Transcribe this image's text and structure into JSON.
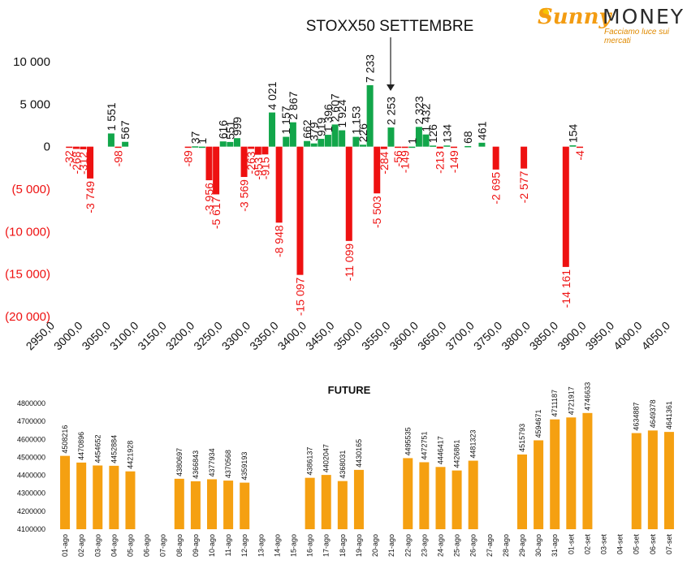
{
  "logo": {
    "word1": "Sunny",
    "word2": "MONEY",
    "tagline": "Facciamo luce sui mercati"
  },
  "colors": {
    "positive": "#12a64a",
    "negative": "#ee1111",
    "future": "#f5a011"
  },
  "chart_data": [
    {
      "type": "bar",
      "title": "STOXX50 SETTEMBRE",
      "xlim": [
        2950,
        4050
      ],
      "x_ticks": [
        "2950,0",
        "3000,0",
        "3050,0",
        "3100,0",
        "3150,0",
        "3200,0",
        "3250,0",
        "3300,0",
        "3350,0",
        "3400,0",
        "3450,0",
        "3500,0",
        "3550,0",
        "3600,0",
        "3650,0",
        "3700,0",
        "3750,0",
        "3800,0",
        "3850,0",
        "3900,0",
        "3950,0",
        "4000,0",
        "4050,0"
      ],
      "y_ticks": [
        "10 000",
        "5 000",
        "0",
        "(5 000)",
        "(10 000)",
        "(15 000)",
        "(20 000)"
      ],
      "y_tick_values": [
        10000,
        5000,
        0,
        -5000,
        -10000,
        -15000,
        -20000
      ],
      "ylim": [
        -20000,
        10000
      ],
      "series": [
        {
          "values": [
            {
              "x": 2975,
              "y": -32,
              "label": "-32"
            },
            {
              "x": 2987.5,
              "y": -268,
              "label": "-268"
            },
            {
              "x": 3000,
              "y": -312,
              "label": "-312"
            },
            {
              "x": 3012.5,
              "y": -3749,
              "label": "-3 749"
            },
            {
              "x": 3050,
              "y": 1551,
              "label": "1 551"
            },
            {
              "x": 3062.5,
              "y": -98,
              "label": "-98"
            },
            {
              "x": 3075,
              "y": 567,
              "label": "567"
            },
            {
              "x": 3187.5,
              "y": -89,
              "label": "-89"
            },
            {
              "x": 3200,
              "y": 37,
              "label": "37"
            },
            {
              "x": 3212.5,
              "y": 1,
              "label": "1"
            },
            {
              "x": 3225,
              "y": -3956,
              "label": "-3 956"
            },
            {
              "x": 3237.5,
              "y": -5617,
              "label": "-5 617"
            },
            {
              "x": 3250,
              "y": 616,
              "label": "616"
            },
            {
              "x": 3262.5,
              "y": 551,
              "label": "551"
            },
            {
              "x": 3275,
              "y": 999,
              "label": "999"
            },
            {
              "x": 3287.5,
              "y": -3569,
              "label": "-3 569"
            },
            {
              "x": 3300,
              "y": -263,
              "label": "-263"
            },
            {
              "x": 3312.5,
              "y": -953,
              "label": "-953"
            },
            {
              "x": 3325,
              "y": -915,
              "label": "-915"
            },
            {
              "x": 3337.5,
              "y": 4021,
              "label": "4 021"
            },
            {
              "x": 3350,
              "y": -8948,
              "label": "-8 948"
            },
            {
              "x": 3362.5,
              "y": 1157,
              "label": "1 157"
            },
            {
              "x": 3375,
              "y": 2867,
              "label": "2 867"
            },
            {
              "x": 3387.5,
              "y": -15097,
              "label": "-15 097"
            },
            {
              "x": 3400,
              "y": 662,
              "label": "662"
            },
            {
              "x": 3412.5,
              "y": 379,
              "label": "379"
            },
            {
              "x": 3425,
              "y": 919,
              "label": "919"
            },
            {
              "x": 3437.5,
              "y": 1396,
              "label": "1 396"
            },
            {
              "x": 3450,
              "y": 2607,
              "label": "2 607"
            },
            {
              "x": 3462.5,
              "y": 1924,
              "label": "1 924"
            },
            {
              "x": 3475,
              "y": -11099,
              "label": "-11 099"
            },
            {
              "x": 3487.5,
              "y": 1153,
              "label": "1 153"
            },
            {
              "x": 3500,
              "y": 226,
              "label": "226"
            },
            {
              "x": 3512.5,
              "y": 7233,
              "label": "7 233"
            },
            {
              "x": 3525,
              "y": -5503,
              "label": "-5 503"
            },
            {
              "x": 3537.5,
              "y": -284,
              "label": "-284"
            },
            {
              "x": 3550,
              "y": 2253,
              "label": "2 253"
            },
            {
              "x": 3562.5,
              "y": -56,
              "label": "-56"
            },
            {
              "x": 3575,
              "y": -149,
              "label": "-149"
            },
            {
              "x": 3587.5,
              "y": 1,
              "label": "1"
            },
            {
              "x": 3600,
              "y": 2323,
              "label": "2 323"
            },
            {
              "x": 3612.5,
              "y": 1432,
              "label": "1 432"
            },
            {
              "x": 3625,
              "y": 126,
              "label": "126"
            },
            {
              "x": 3637.5,
              "y": -213,
              "label": "-213"
            },
            {
              "x": 3650,
              "y": 134,
              "label": "134"
            },
            {
              "x": 3662.5,
              "y": -149,
              "label": "-149"
            },
            {
              "x": 3687.5,
              "y": 68,
              "label": "68"
            },
            {
              "x": 3712.5,
              "y": 461,
              "label": "461"
            },
            {
              "x": 3737.5,
              "y": -2695,
              "label": "-2 695"
            },
            {
              "x": 3787.5,
              "y": -2577,
              "label": "-2 577"
            },
            {
              "x": 3862.5,
              "y": -14161,
              "label": "-14 161"
            },
            {
              "x": 3875,
              "y": 154,
              "label": "154"
            },
            {
              "x": 3887.5,
              "y": -4,
              "label": "-4"
            }
          ]
        }
      ]
    },
    {
      "type": "bar",
      "title": "FUTURE",
      "ylim": [
        4100000,
        4800000
      ],
      "y_ticks": [
        "4800000",
        "4700000",
        "4600000",
        "4500000",
        "4400000",
        "4300000",
        "4200000",
        "4100000"
      ],
      "y_tick_values": [
        4800000,
        4700000,
        4600000,
        4500000,
        4400000,
        4300000,
        4200000,
        4100000
      ],
      "categories": [
        "01-ago",
        "02-ago",
        "03-ago",
        "04-ago",
        "05-ago",
        "06-ago",
        "07-ago",
        "08-ago",
        "09-ago",
        "10-ago",
        "11-ago",
        "12-ago",
        "13-ago",
        "14-ago",
        "15-ago",
        "16-ago",
        "17-ago",
        "18-ago",
        "19-ago",
        "20-ago",
        "21-ago",
        "22-ago",
        "23-ago",
        "24-ago",
        "25-ago",
        "26-ago",
        "27-ago",
        "28-ago",
        "29-ago",
        "30-ago",
        "31-ago",
        "01-set",
        "02-set",
        "03-set",
        "04-set",
        "05-set",
        "06-set",
        "07-set"
      ],
      "values": [
        4508216,
        4470896,
        4454652,
        4452884,
        4421928,
        null,
        null,
        4380697,
        4366843,
        4377934,
        4370568,
        4359193,
        null,
        null,
        null,
        4386137,
        4402047,
        4368031,
        4430165,
        null,
        null,
        4495535,
        4472751,
        4446417,
        4426861,
        4481323,
        null,
        null,
        4515793,
        4594671,
        4711187,
        4721917,
        4746633,
        null,
        null,
        4634887,
        4649378,
        4641361
      ]
    }
  ]
}
